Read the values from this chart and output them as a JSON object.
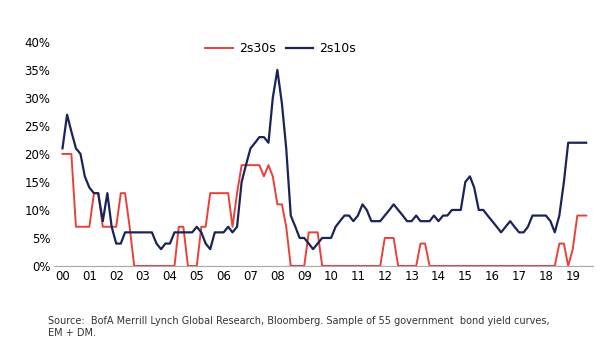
{
  "line1_label": "2s10s",
  "line2_label": "2s30s",
  "line1_color": "#1a2458",
  "line2_color": "#e8413a",
  "background_color": "#ffffff",
  "source_text": "Source:  BofA Merrill Lynch Global Research, Bloomberg. Sample of 55 government  bond yield curves,\nEM + DM.",
  "ylim": [
    0,
    0.42
  ],
  "yticks": [
    0,
    0.05,
    0.1,
    0.15,
    0.2,
    0.25,
    0.3,
    0.35,
    0.4
  ],
  "xtick_labels": [
    "00",
    "01",
    "02",
    "03",
    "04",
    "05",
    "06",
    "07",
    "08",
    "09",
    "10",
    "11",
    "12",
    "13",
    "14",
    "15",
    "16",
    "17",
    "18",
    "19"
  ],
  "x_2s10s": [
    2000.0,
    2000.17,
    2000.33,
    2000.5,
    2000.67,
    2000.83,
    2001.0,
    2001.17,
    2001.33,
    2001.5,
    2001.67,
    2001.83,
    2002.0,
    2002.17,
    2002.33,
    2002.5,
    2002.67,
    2002.83,
    2003.0,
    2003.17,
    2003.33,
    2003.5,
    2003.67,
    2003.83,
    2004.0,
    2004.17,
    2004.33,
    2004.5,
    2004.67,
    2004.83,
    2005.0,
    2005.17,
    2005.33,
    2005.5,
    2005.67,
    2005.83,
    2006.0,
    2006.17,
    2006.33,
    2006.5,
    2006.67,
    2006.83,
    2007.0,
    2007.17,
    2007.33,
    2007.5,
    2007.67,
    2007.83,
    2008.0,
    2008.17,
    2008.33,
    2008.5,
    2008.67,
    2008.83,
    2009.0,
    2009.17,
    2009.33,
    2009.5,
    2009.67,
    2009.83,
    2010.0,
    2010.17,
    2010.33,
    2010.5,
    2010.67,
    2010.83,
    2011.0,
    2011.17,
    2011.33,
    2011.5,
    2011.67,
    2011.83,
    2012.0,
    2012.17,
    2012.33,
    2012.5,
    2012.67,
    2012.83,
    2013.0,
    2013.17,
    2013.33,
    2013.5,
    2013.67,
    2013.83,
    2014.0,
    2014.17,
    2014.33,
    2014.5,
    2014.67,
    2014.83,
    2015.0,
    2015.17,
    2015.33,
    2015.5,
    2015.67,
    2015.83,
    2016.0,
    2016.17,
    2016.33,
    2016.5,
    2016.67,
    2016.83,
    2017.0,
    2017.17,
    2017.33,
    2017.5,
    2017.67,
    2017.83,
    2018.0,
    2018.17,
    2018.33,
    2018.5,
    2018.67,
    2018.83,
    2019.0,
    2019.17,
    2019.33,
    2019.5
  ],
  "y_2s10s": [
    0.21,
    0.27,
    0.24,
    0.21,
    0.2,
    0.16,
    0.14,
    0.13,
    0.13,
    0.08,
    0.13,
    0.07,
    0.04,
    0.04,
    0.06,
    0.06,
    0.06,
    0.06,
    0.06,
    0.06,
    0.06,
    0.04,
    0.03,
    0.04,
    0.04,
    0.06,
    0.06,
    0.06,
    0.06,
    0.06,
    0.07,
    0.06,
    0.04,
    0.03,
    0.06,
    0.06,
    0.06,
    0.07,
    0.06,
    0.07,
    0.15,
    0.18,
    0.21,
    0.22,
    0.23,
    0.23,
    0.22,
    0.3,
    0.35,
    0.29,
    0.21,
    0.09,
    0.07,
    0.05,
    0.05,
    0.04,
    0.03,
    0.04,
    0.05,
    0.05,
    0.05,
    0.07,
    0.08,
    0.09,
    0.09,
    0.08,
    0.09,
    0.11,
    0.1,
    0.08,
    0.08,
    0.08,
    0.09,
    0.1,
    0.11,
    0.1,
    0.09,
    0.08,
    0.08,
    0.09,
    0.08,
    0.08,
    0.08,
    0.09,
    0.08,
    0.09,
    0.09,
    0.1,
    0.1,
    0.1,
    0.15,
    0.16,
    0.14,
    0.1,
    0.1,
    0.09,
    0.08,
    0.07,
    0.06,
    0.07,
    0.08,
    0.07,
    0.06,
    0.06,
    0.07,
    0.09,
    0.09,
    0.09,
    0.09,
    0.08,
    0.06,
    0.09,
    0.15,
    0.22,
    0.22,
    0.22,
    0.22,
    0.22
  ],
  "x_2s30s": [
    2000.0,
    2000.17,
    2000.33,
    2000.5,
    2000.67,
    2000.83,
    2001.0,
    2001.17,
    2001.33,
    2001.5,
    2001.67,
    2001.83,
    2002.0,
    2002.17,
    2002.33,
    2002.5,
    2002.67,
    2002.83,
    2003.0,
    2003.17,
    2003.33,
    2003.5,
    2003.67,
    2003.83,
    2004.0,
    2004.17,
    2004.33,
    2004.5,
    2004.67,
    2004.83,
    2005.0,
    2005.17,
    2005.33,
    2005.5,
    2005.67,
    2005.83,
    2006.0,
    2006.17,
    2006.33,
    2006.5,
    2006.67,
    2006.83,
    2007.0,
    2007.17,
    2007.33,
    2007.5,
    2007.67,
    2007.83,
    2008.0,
    2008.17,
    2008.33,
    2008.5,
    2008.67,
    2008.83,
    2009.0,
    2009.17,
    2009.33,
    2009.5,
    2009.67,
    2009.83,
    2010.0,
    2010.17,
    2010.33,
    2010.5,
    2010.67,
    2010.83,
    2011.0,
    2011.17,
    2011.33,
    2011.5,
    2011.67,
    2011.83,
    2012.0,
    2012.17,
    2012.33,
    2012.5,
    2012.67,
    2012.83,
    2013.0,
    2013.17,
    2013.33,
    2013.5,
    2013.67,
    2013.83,
    2014.0,
    2014.17,
    2014.33,
    2014.5,
    2014.67,
    2014.83,
    2015.0,
    2015.17,
    2015.33,
    2015.5,
    2015.67,
    2015.83,
    2016.0,
    2016.17,
    2016.33,
    2016.5,
    2016.67,
    2016.83,
    2017.0,
    2017.17,
    2017.33,
    2017.5,
    2017.67,
    2017.83,
    2018.0,
    2018.17,
    2018.33,
    2018.5,
    2018.67,
    2018.83,
    2019.0,
    2019.17,
    2019.33,
    2019.5
  ],
  "y_2s30s": [
    0.2,
    0.2,
    0.2,
    0.07,
    0.07,
    0.07,
    0.07,
    0.13,
    0.13,
    0.07,
    0.07,
    0.07,
    0.07,
    0.13,
    0.13,
    0.07,
    0.0,
    0.0,
    0.0,
    0.0,
    0.0,
    0.0,
    0.0,
    0.0,
    0.0,
    0.0,
    0.07,
    0.07,
    0.0,
    0.0,
    0.0,
    0.07,
    0.07,
    0.13,
    0.13,
    0.13,
    0.13,
    0.13,
    0.07,
    0.13,
    0.18,
    0.18,
    0.18,
    0.18,
    0.18,
    0.16,
    0.18,
    0.16,
    0.11,
    0.11,
    0.07,
    0.0,
    0.0,
    0.0,
    0.0,
    0.06,
    0.06,
    0.06,
    0.0,
    0.0,
    0.0,
    0.0,
    0.0,
    0.0,
    0.0,
    0.0,
    0.0,
    0.0,
    0.0,
    0.0,
    0.0,
    0.0,
    0.05,
    0.05,
    0.05,
    0.0,
    0.0,
    0.0,
    0.0,
    0.0,
    0.04,
    0.04,
    0.0,
    0.0,
    0.0,
    0.0,
    0.0,
    0.0,
    0.0,
    0.0,
    0.0,
    0.0,
    0.0,
    0.0,
    0.0,
    0.0,
    0.0,
    0.0,
    0.0,
    0.0,
    0.0,
    0.0,
    0.0,
    0.0,
    0.0,
    0.0,
    0.0,
    0.0,
    0.0,
    0.0,
    0.0,
    0.04,
    0.04,
    0.0,
    0.03,
    0.09,
    0.09,
    0.09
  ]
}
